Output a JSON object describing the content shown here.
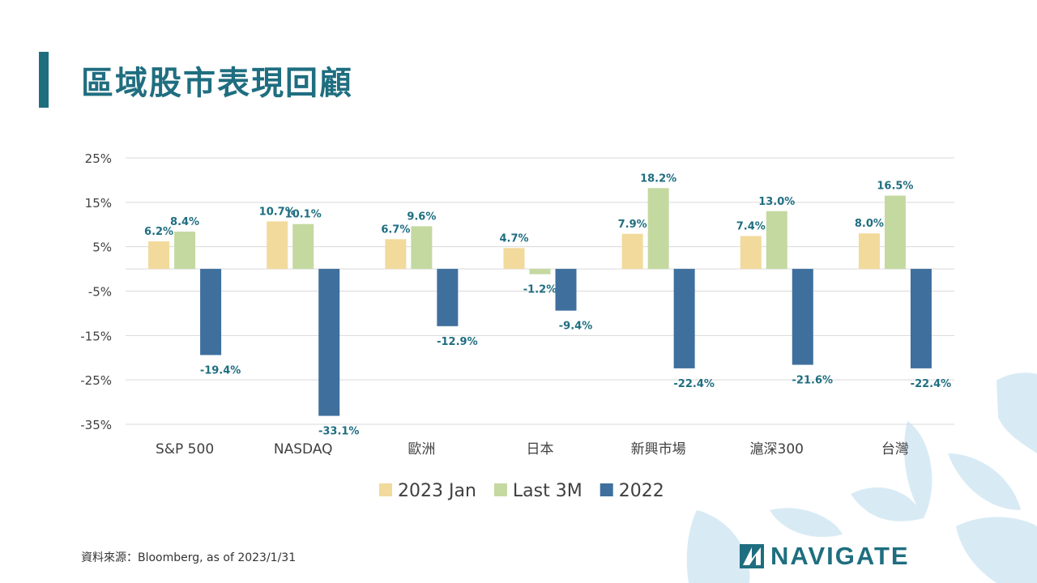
{
  "slide": {
    "title": "區域股市表現回顧",
    "source": "資料來源：Bloomberg, as of 2023/1/31",
    "logo_text": "NAVIGATE"
  },
  "colors": {
    "accent": "#1f6e80",
    "series": [
      "#f2da9c",
      "#c4d9a0",
      "#3f6f9d"
    ],
    "label": "#1f6e80"
  },
  "chart_data": {
    "type": "bar",
    "categories": [
      "S&P 500",
      "NASDAQ",
      "歐洲",
      "日本",
      "新興市場",
      "滬深300",
      "台灣"
    ],
    "series": [
      {
        "name": "2023 Jan",
        "values": [
          6.2,
          10.7,
          6.7,
          4.7,
          7.9,
          7.4,
          8.0
        ],
        "labels": [
          "6.2%",
          "10.7%",
          "6.7%",
          "4.7%",
          "7.9%",
          "7.4%",
          "8.0%"
        ]
      },
      {
        "name": "Last 3M",
        "values": [
          8.4,
          10.1,
          9.6,
          -1.2,
          18.2,
          13.0,
          16.5
        ],
        "labels": [
          "8.4%",
          "10.1%",
          "9.6%",
          "-1.2%",
          "18.2%",
          "13.0%",
          "16.5%"
        ]
      },
      {
        "name": "2022",
        "values": [
          -19.4,
          -33.1,
          -12.9,
          -9.4,
          -22.4,
          -21.6,
          -22.4
        ],
        "labels": [
          "-19.4%",
          "-33.1%",
          "-12.9%",
          "-9.4%",
          "-22.4%",
          "-21.6%",
          "-22.4%"
        ]
      }
    ],
    "ylim": [
      -35,
      25
    ],
    "yticks": [
      25,
      15,
      5,
      -5,
      -15,
      -25,
      -35
    ],
    "ytick_labels": [
      "25%",
      "15%",
      "5%",
      "-5%",
      "-15%",
      "-25%",
      "-35%"
    ],
    "grid": true,
    "legend": "bottom"
  }
}
